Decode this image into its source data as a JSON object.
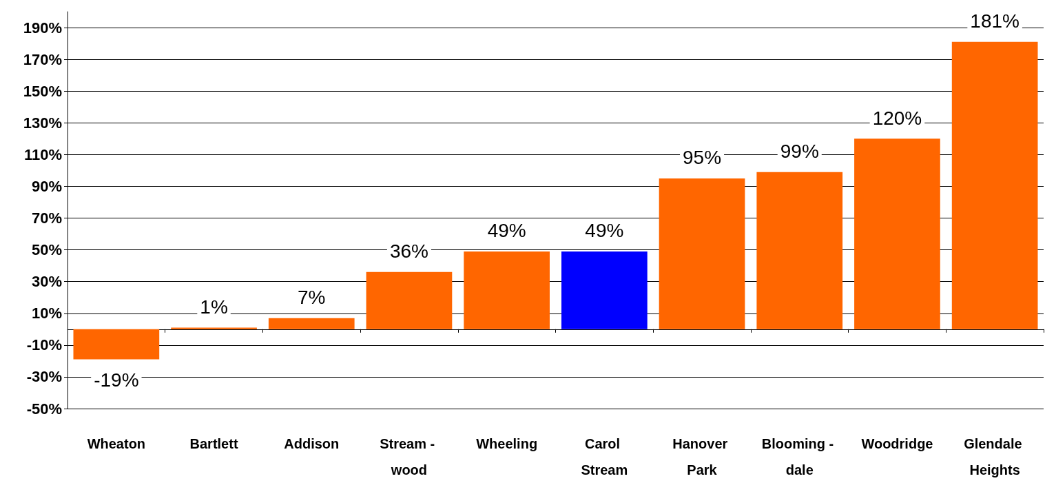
{
  "chart_data": {
    "type": "bar",
    "categories": [
      "Wheaton",
      "Bartlett",
      "Addison",
      "Stream - wood",
      "Wheeling",
      "Carol Stream",
      "Hanover Park",
      "Blooming - dale",
      "Woodridge",
      "Glendale Heights"
    ],
    "values": [
      -19,
      1,
      7,
      36,
      49,
      49,
      95,
      99,
      120,
      181
    ],
    "colors": [
      "#ff6600",
      "#ff6600",
      "#ff6600",
      "#ff6600",
      "#ff6600",
      "#0000ff",
      "#ff6600",
      "#ff6600",
      "#ff6600",
      "#ff6600"
    ],
    "value_labels": [
      "-19%",
      "1%",
      "7%",
      "36%",
      "49%",
      "49%",
      "95%",
      "99%",
      "120%",
      "181%"
    ],
    "ylim": [
      -50,
      200
    ],
    "yticks": [
      {
        "value": -50,
        "label": "-50%"
      },
      {
        "value": -30,
        "label": "-30%"
      },
      {
        "value": -10,
        "label": "-10%"
      },
      {
        "value": 10,
        "label": "10%"
      },
      {
        "value": 30,
        "label": "30%"
      },
      {
        "value": 50,
        "label": "50%"
      },
      {
        "value": 70,
        "label": "70%"
      },
      {
        "value": 90,
        "label": "90%"
      },
      {
        "value": 110,
        "label": "110%"
      },
      {
        "value": 130,
        "label": "130%"
      },
      {
        "value": 150,
        "label": "150%"
      },
      {
        "value": 170,
        "label": "170%"
      },
      {
        "value": 190,
        "label": "190%"
      }
    ],
    "grid": "y"
  }
}
